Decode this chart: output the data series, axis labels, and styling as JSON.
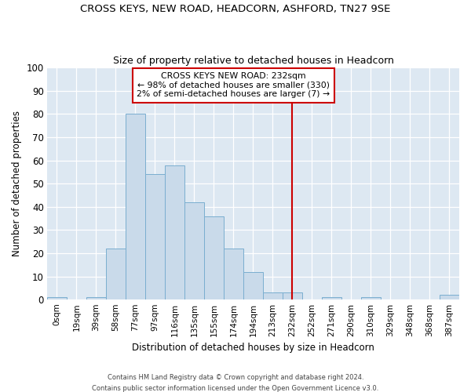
{
  "title1": "CROSS KEYS, NEW ROAD, HEADCORN, ASHFORD, TN27 9SE",
  "title2": "Size of property relative to detached houses in Headcorn",
  "xlabel": "Distribution of detached houses by size in Headcorn",
  "ylabel": "Number of detached properties",
  "bar_labels": [
    "0sqm",
    "19sqm",
    "39sqm",
    "58sqm",
    "77sqm",
    "97sqm",
    "116sqm",
    "135sqm",
    "155sqm",
    "174sqm",
    "194sqm",
    "213sqm",
    "232sqm",
    "252sqm",
    "271sqm",
    "290sqm",
    "310sqm",
    "329sqm",
    "348sqm",
    "368sqm",
    "387sqm"
  ],
  "bar_heights": [
    1,
    0,
    1,
    22,
    80,
    54,
    58,
    42,
    36,
    22,
    12,
    3,
    3,
    0,
    1,
    0,
    1,
    0,
    0,
    0,
    2
  ],
  "bar_color": "#c9daea",
  "bar_edge_color": "#7aaed0",
  "ylim": [
    0,
    100
  ],
  "yticks": [
    0,
    10,
    20,
    30,
    40,
    50,
    60,
    70,
    80,
    90,
    100
  ],
  "vline_index": 12,
  "vline_color": "#cc0000",
  "annotation_title": "CROSS KEYS NEW ROAD: 232sqm",
  "annotation_line1": "← 98% of detached houses are smaller (330)",
  "annotation_line2": "2% of semi-detached houses are larger (7) →",
  "plot_bg_color": "#dde8f2",
  "fig_bg_color": "#ffffff",
  "grid_color": "#ffffff",
  "footer1": "Contains HM Land Registry data © Crown copyright and database right 2024.",
  "footer2": "Contains public sector information licensed under the Open Government Licence v3.0."
}
